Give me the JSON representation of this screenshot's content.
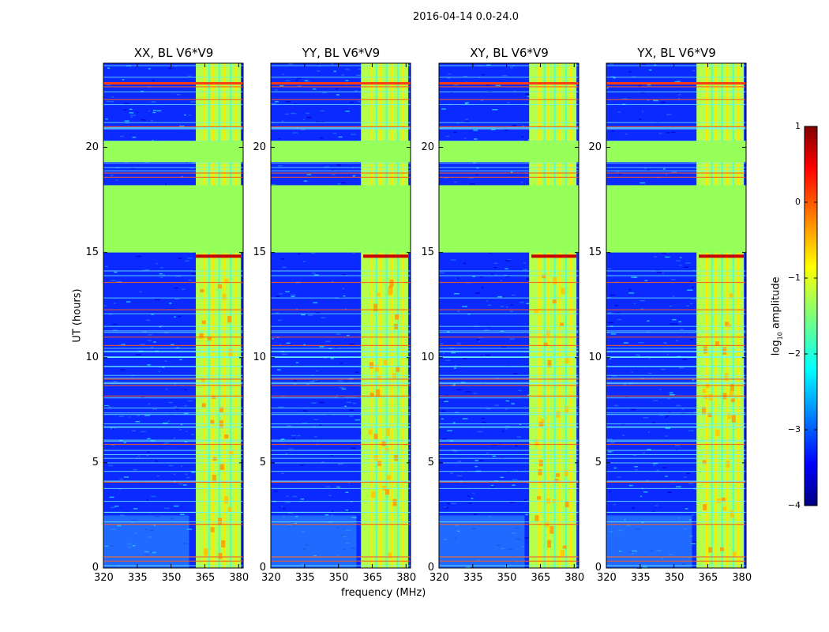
{
  "suptitle": "2016-04-14 0.0-24.0",
  "chart_data": {
    "type": "heatmap",
    "panels": [
      {
        "title": "XX, BL V6*V9"
      },
      {
        "title": "YY, BL V6*V9"
      },
      {
        "title": "XY, BL V6*V9"
      },
      {
        "title": "YX, BL V6*V9"
      }
    ],
    "xlabel": "frequency (MHz)",
    "ylabel": "UT (hours)",
    "xlim": [
      320,
      382
    ],
    "ylim": [
      0,
      24
    ],
    "xticks": [
      320,
      335,
      350,
      365,
      380
    ],
    "yticks": [
      0,
      5,
      10,
      15,
      20
    ],
    "colorbar": {
      "label": "log10 amplitude",
      "range": [
        -4,
        1
      ],
      "ticks": [
        "1",
        "0",
        "−1",
        "−2",
        "−3",
        "−4"
      ],
      "colormap": "jet"
    },
    "flagged_ut_ranges": [
      [
        15.0,
        18.2
      ],
      [
        19.3,
        20.3
      ]
    ],
    "rfi_band_mhz": [
      360,
      381
    ]
  }
}
